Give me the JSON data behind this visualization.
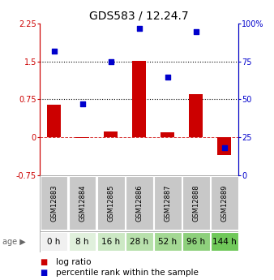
{
  "title": "GDS583 / 12.24.7",
  "samples": [
    "GSM12883",
    "GSM12884",
    "GSM12885",
    "GSM12886",
    "GSM12887",
    "GSM12888",
    "GSM12889"
  ],
  "ages": [
    "0 h",
    "8 h",
    "16 h",
    "28 h",
    "52 h",
    "96 h",
    "144 h"
  ],
  "log_ratio": [
    0.65,
    -0.02,
    0.12,
    1.52,
    0.1,
    0.85,
    -0.35
  ],
  "percentile_rank": [
    82,
    47,
    75,
    97,
    65,
    95,
    18
  ],
  "bar_color": "#cc0000",
  "dot_color": "#0000cc",
  "ylim_left": [
    -0.75,
    2.25
  ],
  "ylim_right": [
    0,
    100
  ],
  "yticks_left": [
    -0.75,
    0,
    0.75,
    1.5,
    2.25
  ],
  "yticks_right": [
    0,
    25,
    50,
    75,
    100
  ],
  "hline_y": [
    0.75,
    1.5
  ],
  "age_bg_colors": [
    "#f0f0f0",
    "#e0f0dc",
    "#cce8c4",
    "#b8e0ac",
    "#a4d894",
    "#8ed07c",
    "#70c85a"
  ],
  "sample_bg_color": "#c8c8c8",
  "title_fontsize": 10,
  "tick_fontsize": 7,
  "legend_fontsize": 7.5,
  "sample_fontsize": 6,
  "age_fontsize": 7.5
}
